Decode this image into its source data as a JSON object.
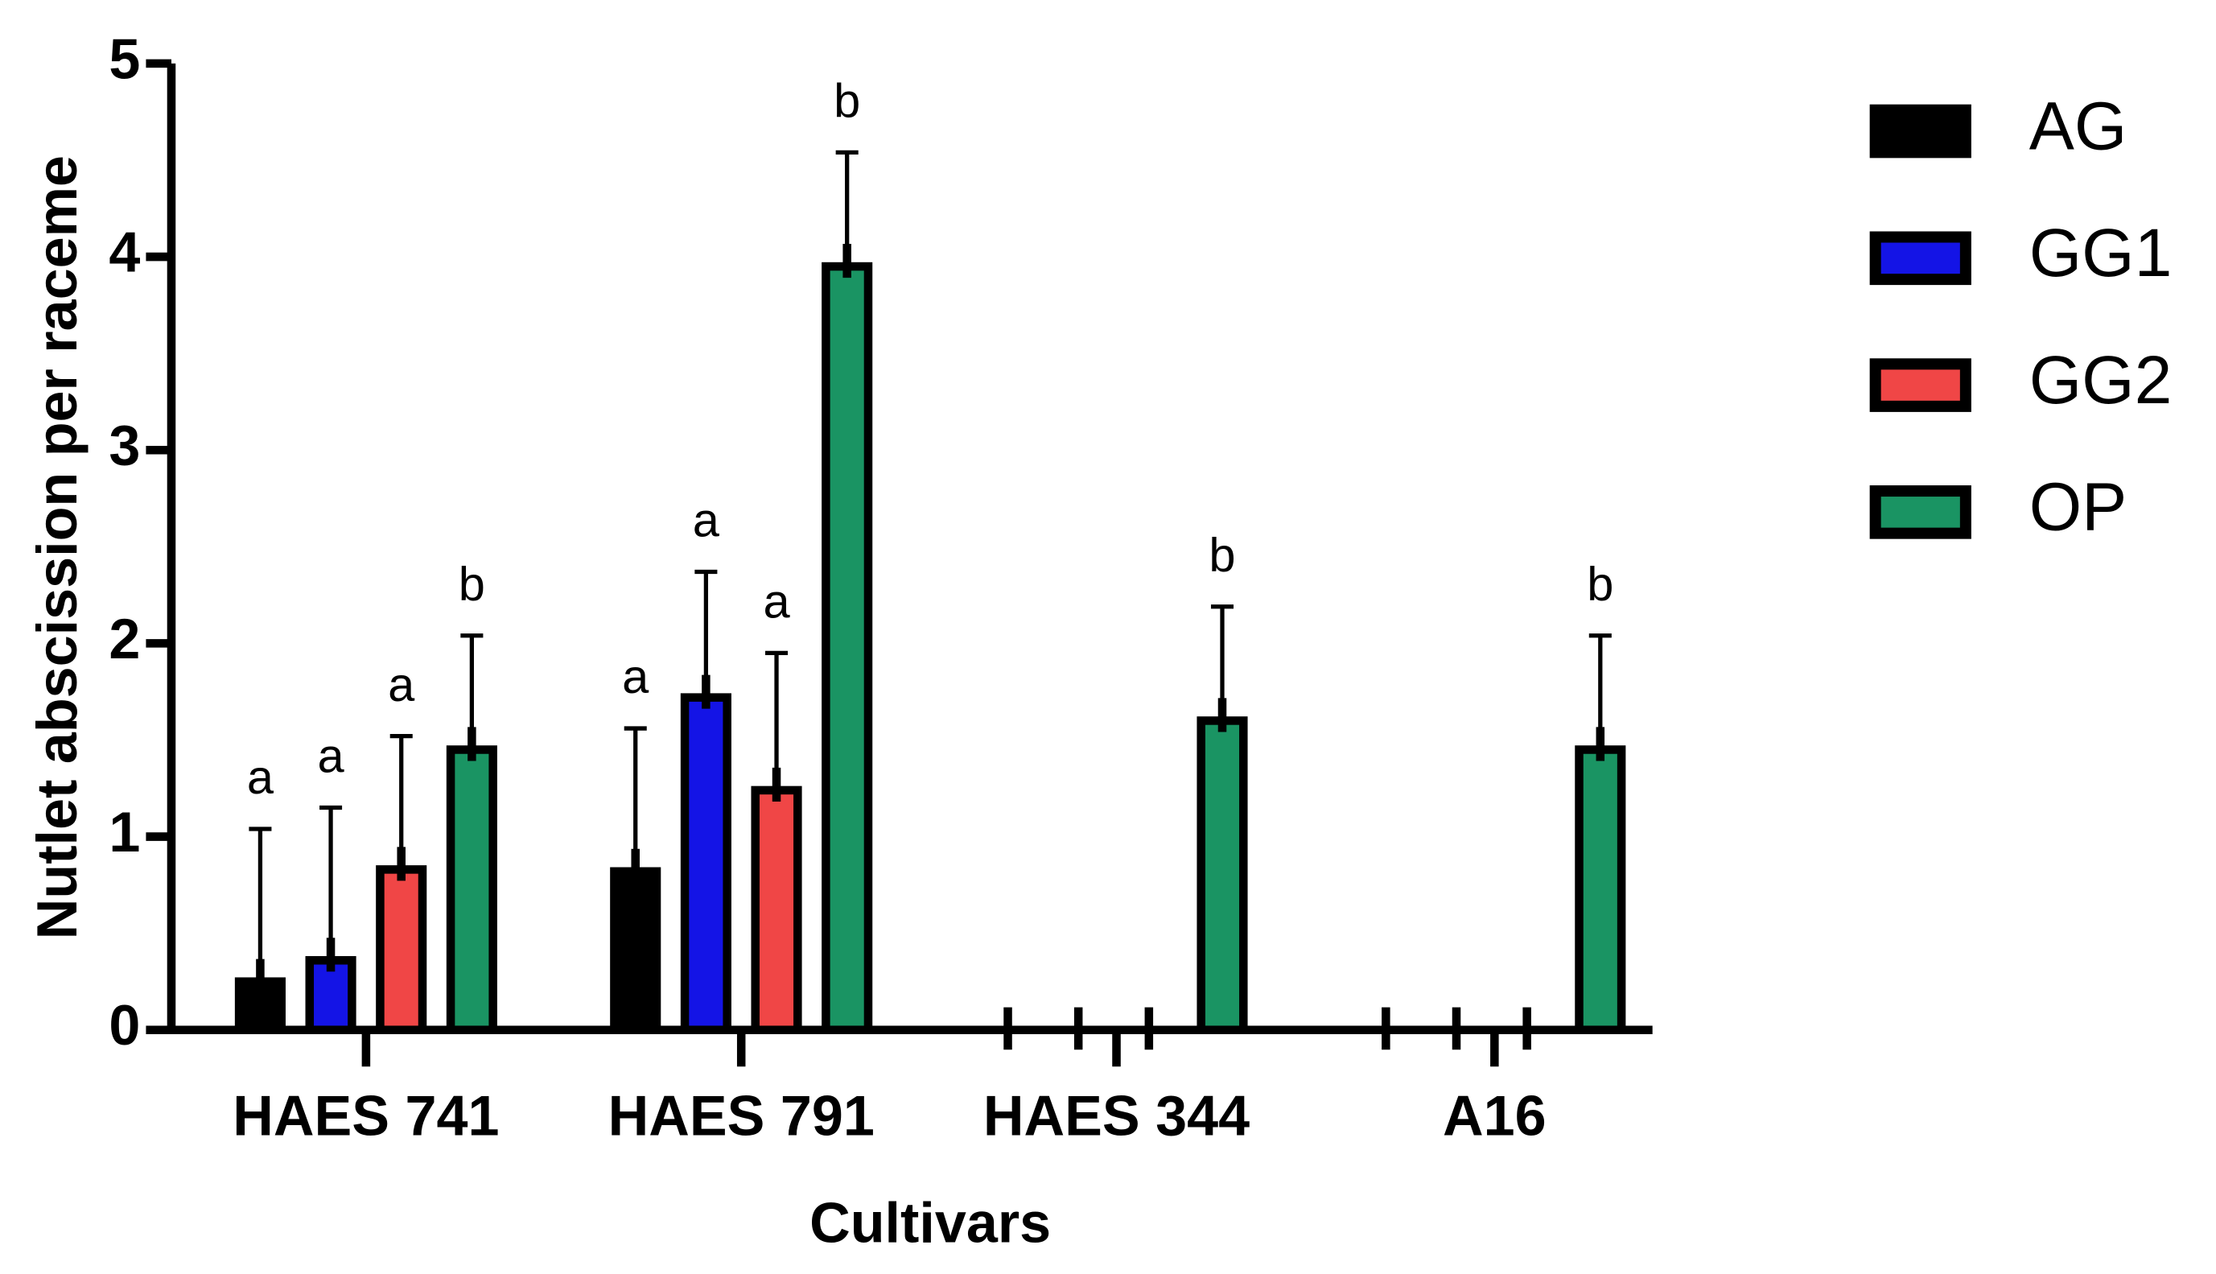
{
  "chart_data": {
    "type": "bar",
    "x_label": "Cultivars",
    "y_label": "Nutlet abscission per raceme",
    "categories": [
      "HAES 741",
      "HAES 791",
      "HAES 344",
      "A16"
    ],
    "series": [
      {
        "name": "AG",
        "color": "#000000",
        "values": [
          0.25,
          0.82,
          0,
          0
        ],
        "errors": [
          0.79,
          0.74,
          null,
          null
        ],
        "letters": [
          "a",
          "a",
          null,
          null
        ]
      },
      {
        "name": "GG1",
        "color": "#1414e6",
        "values": [
          0.36,
          1.72,
          0,
          0
        ],
        "errors": [
          0.79,
          0.65,
          null,
          null
        ],
        "letters": [
          "a",
          "a",
          null,
          null
        ]
      },
      {
        "name": "GG2",
        "color": "#f04646",
        "values": [
          0.83,
          1.24,
          0,
          0
        ],
        "errors": [
          0.69,
          0.71,
          null,
          null
        ],
        "letters": [
          "a",
          "a",
          null,
          null
        ]
      },
      {
        "name": "OP",
        "color": "#1a9463",
        "values": [
          1.45,
          3.95,
          1.6,
          1.45
        ],
        "errors": [
          0.59,
          0.59,
          0.59,
          0.59
        ],
        "letters": [
          "b",
          "b",
          "b",
          "b"
        ]
      }
    ],
    "ylim": [
      0,
      5
    ],
    "yticks": [
      0,
      1,
      2,
      3,
      4,
      5
    ],
    "legend": "right"
  }
}
